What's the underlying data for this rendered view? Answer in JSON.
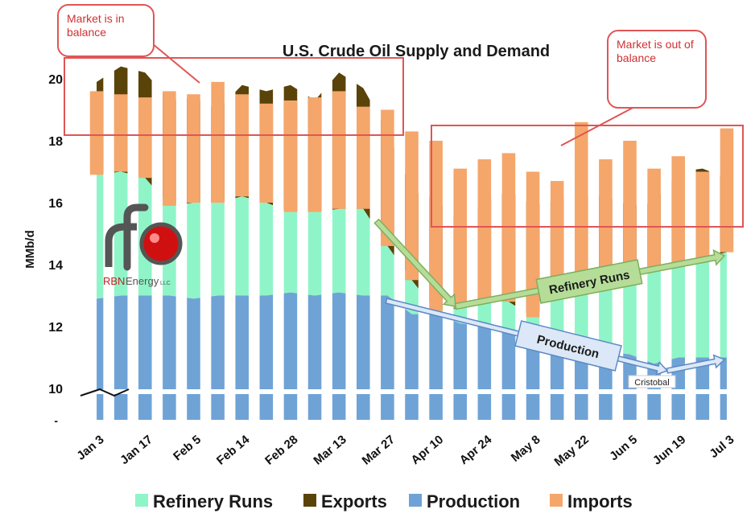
{
  "chart_data": {
    "type": "bar",
    "title": "U.S. Crude Oil Supply and Demand",
    "ylabel": "MMb/d",
    "xlabel": "",
    "ylim": [
      10,
      20
    ],
    "yticks": [
      10,
      12,
      14,
      16,
      18,
      20
    ],
    "y_axis_break_marker": "-",
    "x_tick_labels": [
      "Jan 3",
      "Jan 17",
      "Feb 5",
      "Feb 14",
      "Feb 28",
      "Mar 13",
      "Mar 27",
      "Apr 10",
      "Apr 24",
      "May 8",
      "May 22",
      "Jun 5",
      "Jun 19",
      "Jul 3"
    ],
    "x_tick_indices": [
      0,
      2,
      4,
      6,
      8,
      10,
      12,
      14,
      16,
      18,
      20,
      22,
      24,
      26
    ],
    "categories_count": 27,
    "series": [
      {
        "name": "Production",
        "kind": "stacked_area",
        "color": "#6fa3d6",
        "values": [
          12.9,
          13.0,
          13.0,
          13.0,
          12.9,
          13.0,
          13.0,
          13.0,
          13.1,
          13.0,
          13.1,
          13.0,
          13.0,
          12.4,
          12.4,
          12.1,
          12.0,
          11.9,
          11.8,
          11.6,
          11.4,
          11.2,
          11.1,
          10.8,
          11.0,
          11.0,
          11.0
        ]
      },
      {
        "name": "Refinery Runs",
        "kind": "stacked_area",
        "color": "#8ff5c8",
        "values": [
          16.9,
          17.0,
          16.8,
          15.9,
          16.0,
          16.0,
          16.2,
          16.0,
          15.7,
          15.7,
          15.8,
          15.8,
          14.6,
          13.5,
          12.5,
          12.6,
          12.9,
          12.8,
          12.3,
          13.0,
          13.3,
          13.4,
          13.6,
          13.8,
          14.0,
          14.2,
          14.4
        ]
      },
      {
        "name": "Exports",
        "kind": "stacked_area",
        "color": "#5a4308",
        "values": [
          19.9,
          20.4,
          20.2,
          19.3,
          19.4,
          19.0,
          19.8,
          19.6,
          19.8,
          19.3,
          20.2,
          19.7,
          18.3,
          16.4,
          16.1,
          15.4,
          16.0,
          16.4,
          15.9,
          16.1,
          16.2,
          16.2,
          15.9,
          16.0,
          17.0,
          17.1,
          16.8
        ]
      },
      {
        "name": "Imports",
        "kind": "bar",
        "color": "#f5a66b",
        "values": [
          19.6,
          19.5,
          19.4,
          19.6,
          19.5,
          19.9,
          19.5,
          19.2,
          19.3,
          19.4,
          19.6,
          19.1,
          19.0,
          18.3,
          18.0,
          17.1,
          17.4,
          17.6,
          17.0,
          16.7,
          18.6,
          17.4,
          18.0,
          17.1,
          17.5,
          17.0,
          18.4
        ]
      }
    ],
    "legend": {
      "position": "bottom",
      "items": [
        "Refinery Runs",
        "Exports",
        "Production",
        "Imports"
      ]
    },
    "annotations": [
      {
        "text": "Refinery Runs",
        "kind": "arrow-label"
      },
      {
        "text": "Production",
        "kind": "arrow-label"
      },
      {
        "text": "Cristobal",
        "kind": "label"
      }
    ],
    "logo": {
      "text_primary": "RBN",
      "text_secondary": "Energy",
      "text_tertiary": "LLC"
    }
  },
  "callouts": {
    "left": "Market is in balance",
    "right": "Market is out of balance"
  },
  "colors": {
    "highlight_box": "#e05555",
    "arrow_green_fill": "#b5dd98",
    "arrow_green_stroke": "#7fae5e",
    "arrow_blue_fill": "#dce8f7",
    "arrow_blue_stroke": "#5b89c6"
  }
}
